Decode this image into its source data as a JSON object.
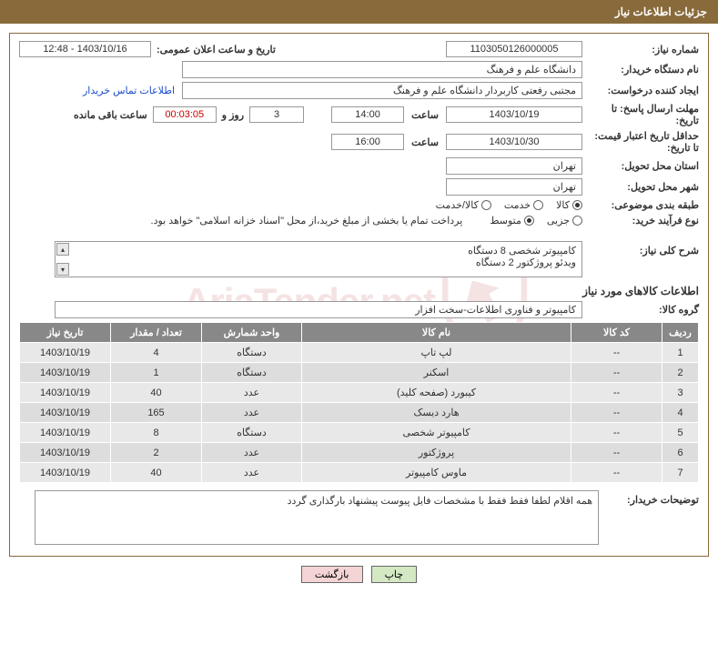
{
  "header": {
    "title": "جزئیات اطلاعات نیاز"
  },
  "watermark": {
    "text": "AriaTender.net"
  },
  "form": {
    "need_no_label": "شماره نیاز:",
    "need_no": "1103050126000005",
    "announce_label": "تاریخ و ساعت اعلان عمومی:",
    "announce": "1403/10/16 - 12:48",
    "buyer_org_label": "نام دستگاه خریدار:",
    "buyer_org": "دانشگاه علم و فرهنگ",
    "requester_label": "ایجاد کننده درخواست:",
    "requester": "مجتبی رفعتی کاربردار دانشگاه علم و فرهنگ",
    "contact_link": "اطلاعات تماس خریدار",
    "deadline_label": "مهلت ارسال پاسخ: تا تاریخ:",
    "deadline_date": "1403/10/19",
    "time_label": "ساعت",
    "deadline_time": "14:00",
    "days_val": "3",
    "days_and": "روز و",
    "countdown": "00:03:05",
    "remaining_label": "ساعت باقی مانده",
    "validity_label": "حداقل تاریخ اعتبار قیمت: تا تاریخ:",
    "validity_date": "1403/10/30",
    "validity_time": "16:00",
    "province_label": "استان محل تحویل:",
    "province": "تهران",
    "city_label": "شهر محل تحویل:",
    "city": "تهران",
    "category_label": "طبقه بندی موضوعی:",
    "cat_opt1": "کالا",
    "cat_opt2": "خدمت",
    "cat_opt3": "کالا/خدمت",
    "process_label": "نوع فرآیند خرید:",
    "proc_opt1": "جزیی",
    "proc_opt2": "متوسط",
    "process_note": "پرداخت تمام یا بخشی از مبلغ خرید،از محل \"اسناد خزانه اسلامی\" خواهد بود.",
    "summary_label": "شرح کلی نیاز:",
    "summary_line1": "کامپیوتر شخصی 8 دستگاه",
    "summary_line2": "ویدئو پروژکتور 2 دستگاه",
    "items_section_title": "اطلاعات کالاهای مورد نیاز",
    "group_label": "گروه کالا:",
    "group": "کامپیوتر و فناوری اطلاعات-سخت افزار",
    "table": {
      "cols": [
        "ردیف",
        "کد کالا",
        "نام کالا",
        "واحد شمارش",
        "تعداد / مقدار",
        "تاریخ نیاز"
      ],
      "rows": [
        [
          "1",
          "--",
          "لپ تاپ",
          "دستگاه",
          "4",
          "1403/10/19"
        ],
        [
          "2",
          "--",
          "اسکنر",
          "دستگاه",
          "1",
          "1403/10/19"
        ],
        [
          "3",
          "--",
          "کیبورد (صفحه کلید)",
          "عدد",
          "40",
          "1403/10/19"
        ],
        [
          "4",
          "--",
          "هارد دیسک",
          "عدد",
          "165",
          "1403/10/19"
        ],
        [
          "5",
          "--",
          "کامپیوتر شخصی",
          "دستگاه",
          "8",
          "1403/10/19"
        ],
        [
          "6",
          "--",
          "پروژکتور",
          "عدد",
          "2",
          "1403/10/19"
        ],
        [
          "7",
          "--",
          "ماوس کامپیوتر",
          "عدد",
          "40",
          "1403/10/19"
        ]
      ]
    },
    "buyer_notes_label": "توضیحات خریدار:",
    "buyer_notes": "همه اقلام لطفا فقط فقط با مشخصات فایل پیوست پیشنهاد بارگذاری گردد"
  },
  "buttons": {
    "print": "چاپ",
    "back": "بازگشت"
  }
}
